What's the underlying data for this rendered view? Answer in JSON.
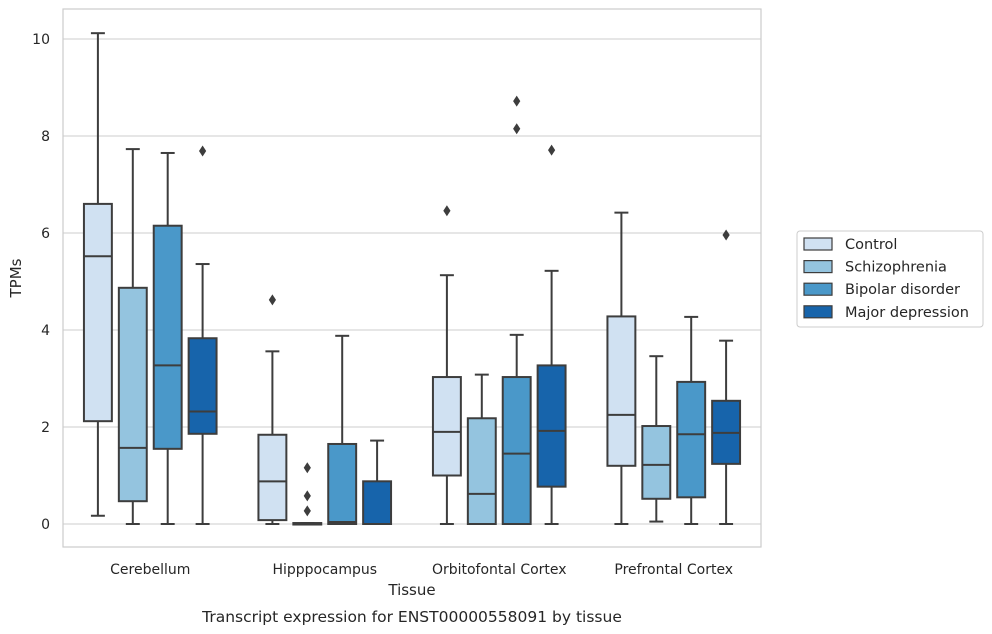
{
  "chart_data": {
    "type": "boxplot",
    "caption": "Transcript expression for ENST00000558091 by tissue",
    "xlabel": "Tissue",
    "ylabel": "TPMs",
    "ylim": [
      -0.5,
      10.6
    ],
    "yticks": [
      0,
      2,
      4,
      6,
      8,
      10
    ],
    "grid": "horizontal",
    "legend_position": "right",
    "categories": [
      "Cerebellum",
      "Hipppocampus",
      "Orbitofontal Cortex",
      "Prefrontal Cortex"
    ],
    "series": [
      {
        "name": "Control",
        "color": "#d0e1f2",
        "boxes": [
          {
            "whislo": 0.17,
            "q1": 2.12,
            "med": 5.52,
            "q3": 6.6,
            "whishi": 10.12,
            "fliers": []
          },
          {
            "whislo": 0.0,
            "q1": 0.08,
            "med": 0.88,
            "q3": 1.84,
            "whishi": 3.56,
            "fliers": [
              4.62
            ]
          },
          {
            "whislo": 0.0,
            "q1": 1.0,
            "med": 1.9,
            "q3": 3.03,
            "whishi": 5.13,
            "fliers": [
              6.46
            ]
          },
          {
            "whislo": 0.0,
            "q1": 1.2,
            "med": 2.25,
            "q3": 4.28,
            "whishi": 6.42,
            "fliers": []
          }
        ]
      },
      {
        "name": "Schizophrenia",
        "color": "#94c4df",
        "boxes": [
          {
            "whislo": 0.0,
            "q1": 0.47,
            "med": 1.57,
            "q3": 4.87,
            "whishi": 7.73,
            "fliers": []
          },
          {
            "whislo": 0.0,
            "q1": 0.0,
            "med": 0.0,
            "q3": 0.02,
            "whishi": 0.02,
            "fliers": [
              0.27,
              0.58,
              1.16
            ]
          },
          {
            "whislo": 0.0,
            "q1": 0.0,
            "med": 0.62,
            "q3": 2.18,
            "whishi": 3.08,
            "fliers": []
          },
          {
            "whislo": 0.05,
            "q1": 0.52,
            "med": 1.22,
            "q3": 2.02,
            "whishi": 3.46,
            "fliers": []
          }
        ]
      },
      {
        "name": "Bipolar disorder",
        "color": "#4a98c9",
        "boxes": [
          {
            "whislo": 0.0,
            "q1": 1.55,
            "med": 3.27,
            "q3": 6.15,
            "whishi": 7.65,
            "fliers": []
          },
          {
            "whislo": 0.0,
            "q1": 0.0,
            "med": 0.04,
            "q3": 1.65,
            "whishi": 3.88,
            "fliers": []
          },
          {
            "whislo": 0.0,
            "q1": 0.0,
            "med": 1.45,
            "q3": 3.03,
            "whishi": 3.9,
            "fliers": [
              8.15,
              8.72
            ]
          },
          {
            "whislo": 0.0,
            "q1": 0.55,
            "med": 1.85,
            "q3": 2.93,
            "whishi": 4.27,
            "fliers": []
          }
        ]
      },
      {
        "name": "Major depression",
        "color": "#1764ab",
        "boxes": [
          {
            "whislo": 0.0,
            "q1": 1.86,
            "med": 2.32,
            "q3": 3.83,
            "whishi": 5.36,
            "fliers": [
              7.69
            ]
          },
          {
            "whislo": 0.0,
            "q1": 0.0,
            "med": 0.0,
            "q3": 0.88,
            "whishi": 1.72,
            "fliers": []
          },
          {
            "whislo": 0.0,
            "q1": 0.77,
            "med": 1.92,
            "q3": 3.27,
            "whishi": 5.22,
            "fliers": [
              7.71
            ]
          },
          {
            "whislo": 0.0,
            "q1": 1.24,
            "med": 1.88,
            "q3": 2.54,
            "whishi": 3.78,
            "fliers": [
              5.96
            ]
          }
        ]
      }
    ]
  }
}
